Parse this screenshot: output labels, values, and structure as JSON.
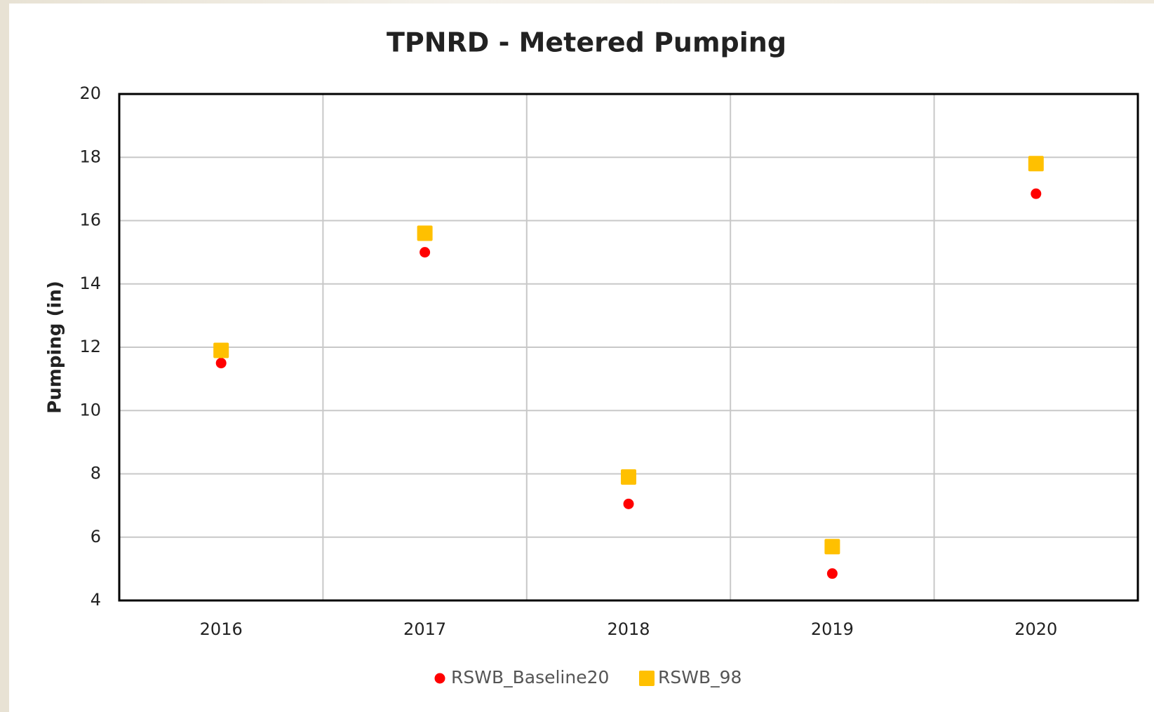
{
  "chart_data": {
    "type": "scatter",
    "title": "TPNRD  - Metered Pumping",
    "y_label": "Pumping (in)",
    "categories": [
      "2016",
      "2017",
      "2018",
      "2019",
      "2020"
    ],
    "series": [
      {
        "name": "RSWB_Baseline20",
        "color": "#ff0000",
        "marker": "circle",
        "values": [
          11.5,
          15.0,
          7.05,
          4.85,
          16.85
        ]
      },
      {
        "name": "RSWB_98",
        "color": "#ffc000",
        "marker": "square",
        "values": [
          11.9,
          15.6,
          7.9,
          5.7,
          17.8
        ]
      }
    ],
    "ylim": [
      4,
      20
    ],
    "yticks": [
      4,
      6,
      8,
      10,
      12,
      14,
      16,
      18,
      20
    ],
    "grid": true,
    "legend": "bottom"
  }
}
